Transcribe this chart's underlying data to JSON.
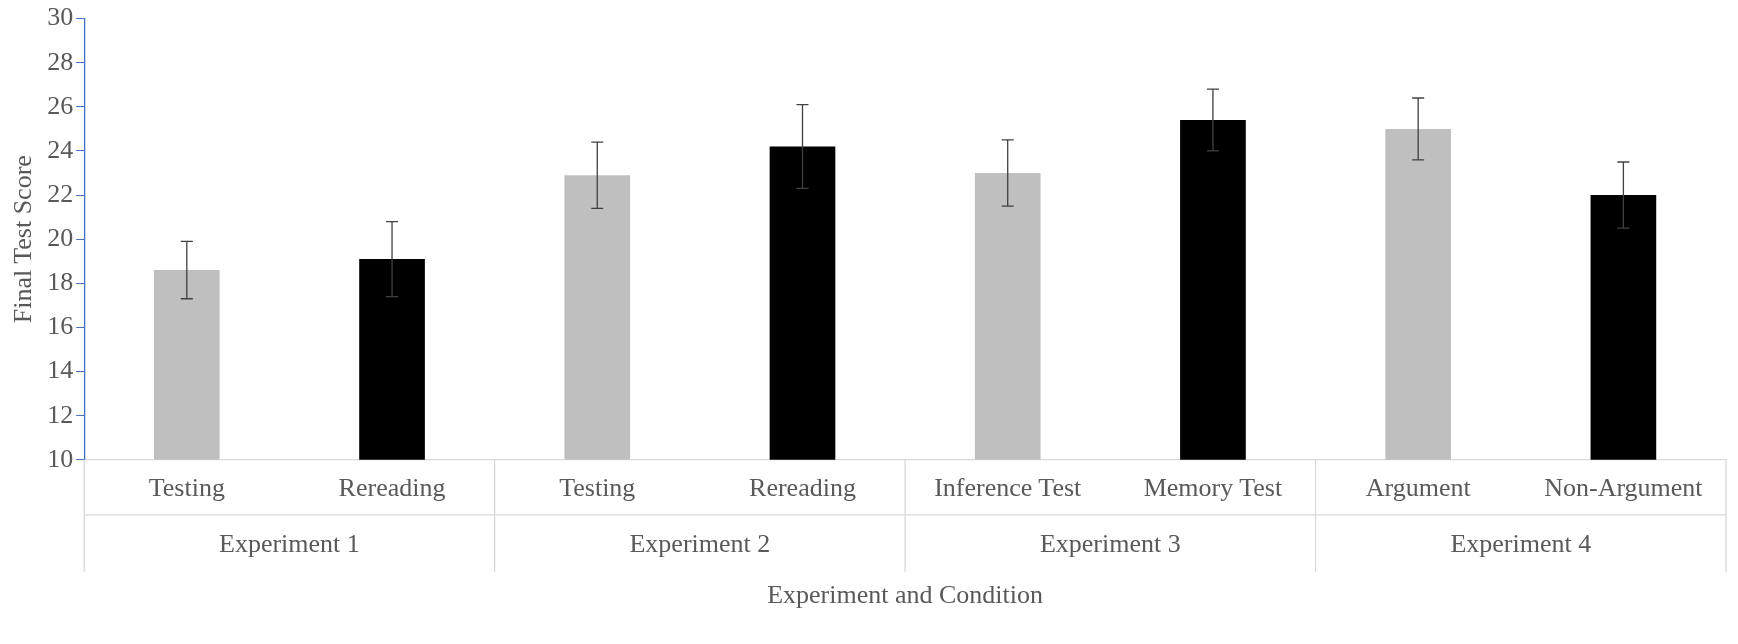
{
  "chart_data": {
    "type": "bar",
    "xlabel": "Experiment and Condition",
    "ylabel": "Final Test Score",
    "categories": [
      "Testing",
      "Rereading",
      "Testing",
      "Rereading",
      "Inference Test",
      "Memory Test",
      "Argument",
      "Non-Argument"
    ],
    "values": [
      18.6,
      19.1,
      22.9,
      24.2,
      23.0,
      25.4,
      25.0,
      22.0
    ],
    "colors": [
      "#bfbfbf",
      "#000000",
      "#bfbfbf",
      "#000000",
      "#bfbfbf",
      "#000000",
      "#bfbfbf",
      "#000000"
    ],
    "errors": [
      [
        17.3,
        19.9
      ],
      [
        17.4,
        20.8
      ],
      [
        21.4,
        24.4
      ],
      [
        22.3,
        26.1
      ],
      [
        21.5,
        24.5
      ],
      [
        24.0,
        26.8
      ],
      [
        23.6,
        26.4
      ],
      [
        20.5,
        23.5
      ]
    ],
    "annotations": [
      "Experiment 1",
      "Experiment 2",
      "Experiment 3",
      "Experiment 4"
    ],
    "ylim": [
      10,
      30
    ],
    "yticks": [
      10,
      12,
      14,
      16,
      18,
      20,
      22,
      24,
      26,
      28,
      30
    ],
    "grid": false,
    "legend": false
  }
}
